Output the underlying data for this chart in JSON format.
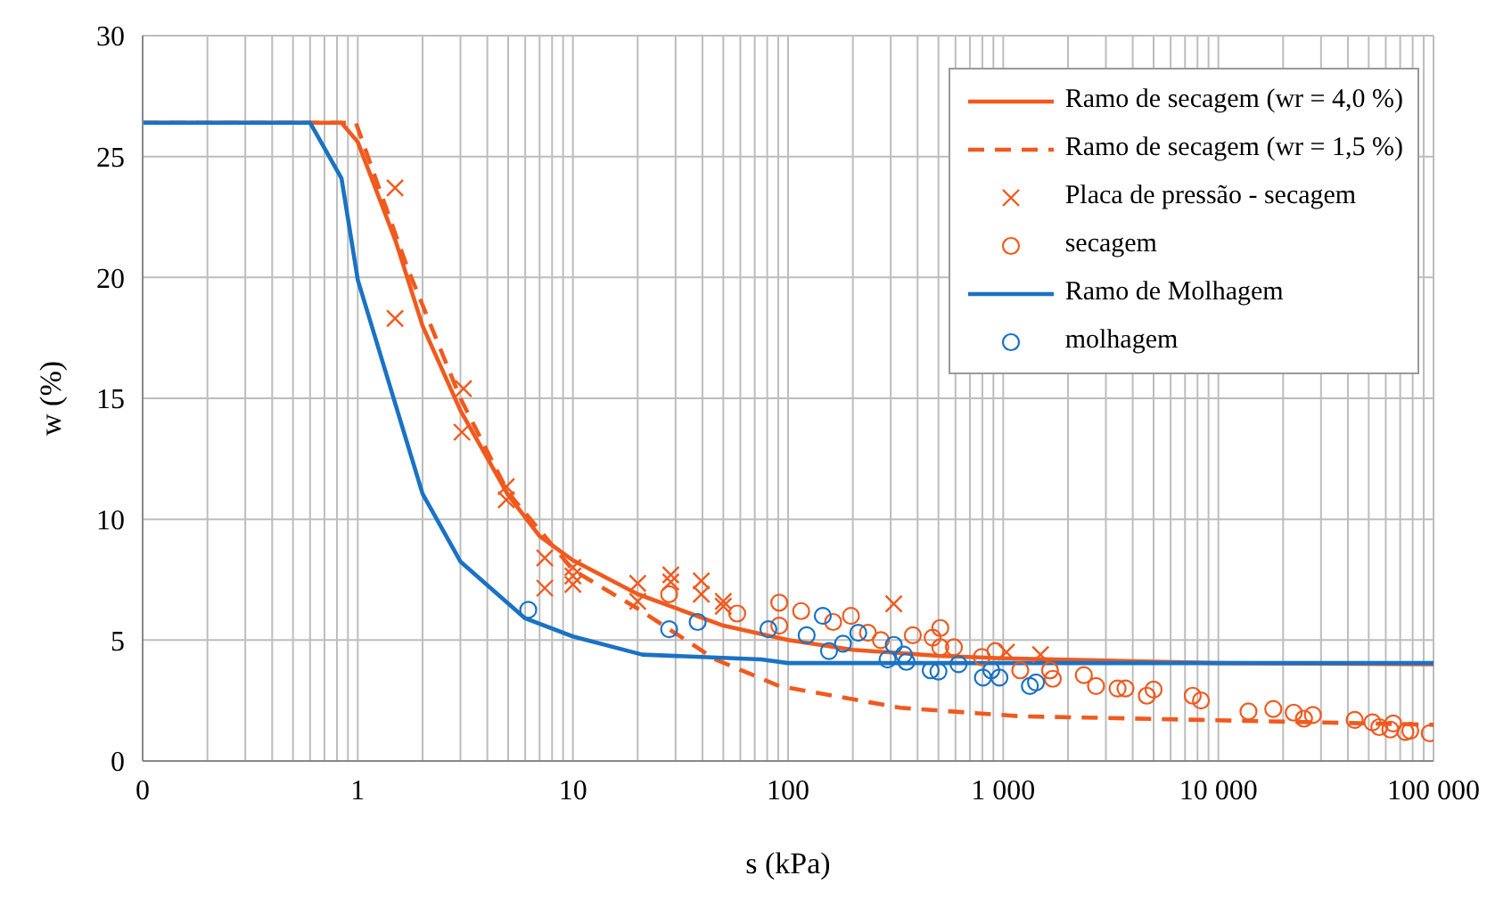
{
  "chart_data": {
    "type": "line",
    "xlabel": "s (kPa)",
    "ylabel": "w (%)",
    "log": "x",
    "grid": true,
    "legend": "top right",
    "xlim": [
      0.1,
      100000
    ],
    "ylim": [
      0,
      30
    ],
    "yticks": [
      0,
      5,
      10,
      15,
      20,
      25,
      30
    ],
    "xticks": [
      {
        "value": 0.1,
        "label": "0"
      },
      {
        "value": 0.2,
        "label": null
      },
      {
        "value": 0.3,
        "label": null
      },
      {
        "value": 0.4,
        "label": null
      },
      {
        "value": 0.5,
        "label": null
      },
      {
        "value": 0.6,
        "label": null
      },
      {
        "value": 0.7,
        "label": null
      },
      {
        "value": 0.8,
        "label": null
      },
      {
        "value": 0.9,
        "label": null
      },
      {
        "value": 1,
        "label": "1"
      },
      {
        "value": 2,
        "label": null
      },
      {
        "value": 3,
        "label": null
      },
      {
        "value": 4,
        "label": null
      },
      {
        "value": 5,
        "label": null
      },
      {
        "value": 6,
        "label": null
      },
      {
        "value": 7,
        "label": null
      },
      {
        "value": 8,
        "label": null
      },
      {
        "value": 9,
        "label": null
      },
      {
        "value": 10,
        "label": "10"
      },
      {
        "value": 20,
        "label": null
      },
      {
        "value": 30,
        "label": null
      },
      {
        "value": 40,
        "label": null
      },
      {
        "value": 50,
        "label": null
      },
      {
        "value": 60,
        "label": null
      },
      {
        "value": 70,
        "label": null
      },
      {
        "value": 80,
        "label": null
      },
      {
        "value": 90,
        "label": null
      },
      {
        "value": 100,
        "label": "100"
      },
      {
        "value": 200,
        "label": null
      },
      {
        "value": 300,
        "label": null
      },
      {
        "value": 400,
        "label": null
      },
      {
        "value": 500,
        "label": null
      },
      {
        "value": 600,
        "label": null
      },
      {
        "value": 700,
        "label": null
      },
      {
        "value": 800,
        "label": null
      },
      {
        "value": 900,
        "label": null
      },
      {
        "value": 1000,
        "label": "1 000"
      },
      {
        "value": 2000,
        "label": null
      },
      {
        "value": 3000,
        "label": null
      },
      {
        "value": 4000,
        "label": null
      },
      {
        "value": 5000,
        "label": null
      },
      {
        "value": 6000,
        "label": null
      },
      {
        "value": 7000,
        "label": null
      },
      {
        "value": 8000,
        "label": null
      },
      {
        "value": 9000,
        "label": null
      },
      {
        "value": 10000,
        "label": "10 000"
      },
      {
        "value": 20000,
        "label": null
      },
      {
        "value": 30000,
        "label": null
      },
      {
        "value": 40000,
        "label": null
      },
      {
        "value": 50000,
        "label": null
      },
      {
        "value": 60000,
        "label": null
      },
      {
        "value": 70000,
        "label": null
      },
      {
        "value": 80000,
        "label": null
      },
      {
        "value": 90000,
        "label": null
      },
      {
        "value": 100000,
        "label": "100 000"
      }
    ],
    "series": [
      {
        "name": "Ramo de secagem (wr = 4,0 %)",
        "line_style": "solid",
        "color": "#f05a1e",
        "x": [
          0.1,
          0.84,
          1,
          1.5,
          2,
          3,
          5,
          7,
          10,
          20,
          50,
          100,
          200,
          500,
          1000,
          3000,
          10000,
          100000
        ],
        "values": [
          26.4,
          26.4,
          25.6,
          21.5,
          18,
          14.5,
          11,
          9.3,
          8.3,
          6.9,
          5.6,
          5.0,
          4.6,
          4.35,
          4.25,
          4.15,
          4.05,
          4.0
        ]
      },
      {
        "name": "Ramo de secagem (wr = 1,5 %)",
        "line_style": "dashed",
        "color": "#f05a1e",
        "x": [
          0.1,
          0.98,
          1.7,
          3,
          5,
          10,
          20,
          46,
          91,
          333,
          1200,
          8300,
          100000
        ],
        "values": [
          26.4,
          26.4,
          20.4,
          15.0,
          11.1,
          7.9,
          6.3,
          4.2,
          3.1,
          2.2,
          1.85,
          1.7,
          1.5
        ]
      },
      {
        "name": "Placa de pressão - secagem",
        "type": "scatter",
        "marker": "cross",
        "color": "#f05a1e",
        "x": [
          1.49,
          1.49,
          3.1,
          3.05,
          4.9,
          4.9,
          7.4,
          7.4,
          10,
          10,
          10,
          20,
          20,
          28.5,
          28.5,
          39.5,
          39.5,
          50,
          50,
          310,
          1035,
          1490
        ],
        "values": [
          23.7,
          18.3,
          15.4,
          13.6,
          11.35,
          10.8,
          8.4,
          7.15,
          8.0,
          7.65,
          7.3,
          7.35,
          6.6,
          7.7,
          7.4,
          7.45,
          6.9,
          6.6,
          6.4,
          6.5,
          4.5,
          4.4
        ]
      },
      {
        "name": "secagem",
        "type": "scatter",
        "marker": "circle",
        "color": "#f05a1e",
        "x": [
          28,
          58,
          91,
          91,
          115,
          162,
          196,
          235,
          270,
          380,
          470,
          510,
          510,
          590,
          795,
          920,
          1200,
          1650,
          1700,
          2370,
          2700,
          3400,
          3700,
          4650,
          5000,
          7600,
          8300,
          13800,
          18000,
          22400,
          25000,
          27500,
          43000,
          52000,
          56000,
          63000,
          65000,
          74000,
          78000,
          96000
        ],
        "values": [
          6.9,
          6.1,
          6.55,
          5.6,
          6.2,
          5.75,
          6.0,
          5.3,
          5.0,
          5.2,
          5.1,
          5.5,
          4.7,
          4.7,
          4.3,
          4.55,
          3.75,
          3.75,
          3.4,
          3.55,
          3.1,
          3.0,
          3.0,
          2.7,
          2.95,
          2.7,
          2.5,
          2.05,
          2.15,
          2.0,
          1.75,
          1.9,
          1.7,
          1.6,
          1.4,
          1.3,
          1.55,
          1.2,
          1.25,
          1.15
        ]
      },
      {
        "name": "Ramo de Molhagem",
        "line_style": "solid",
        "color": "#1a72c4",
        "x": [
          0.1,
          0.6,
          0.84,
          1,
          2,
          3,
          6,
          10,
          21,
          75,
          100,
          1000,
          100000
        ],
        "values": [
          26.4,
          26.4,
          24.1,
          19.9,
          11.05,
          8.25,
          5.9,
          5.15,
          4.4,
          4.2,
          4.05,
          4.05,
          4.05
        ]
      },
      {
        "name": "molhagem",
        "type": "scatter",
        "marker": "circle",
        "color": "#1a72c4",
        "x": [
          6.2,
          28,
          38,
          81,
          122,
          145,
          155,
          180,
          212,
          290,
          310,
          345,
          355,
          460,
          500,
          620,
          805,
          880,
          960,
          1330,
          1420
        ],
        "values": [
          6.25,
          5.45,
          5.75,
          5.45,
          5.2,
          6.0,
          4.55,
          4.85,
          5.3,
          4.2,
          4.8,
          4.4,
          4.1,
          3.75,
          3.7,
          4.0,
          3.45,
          3.75,
          3.45,
          3.1,
          3.25
        ]
      }
    ]
  }
}
